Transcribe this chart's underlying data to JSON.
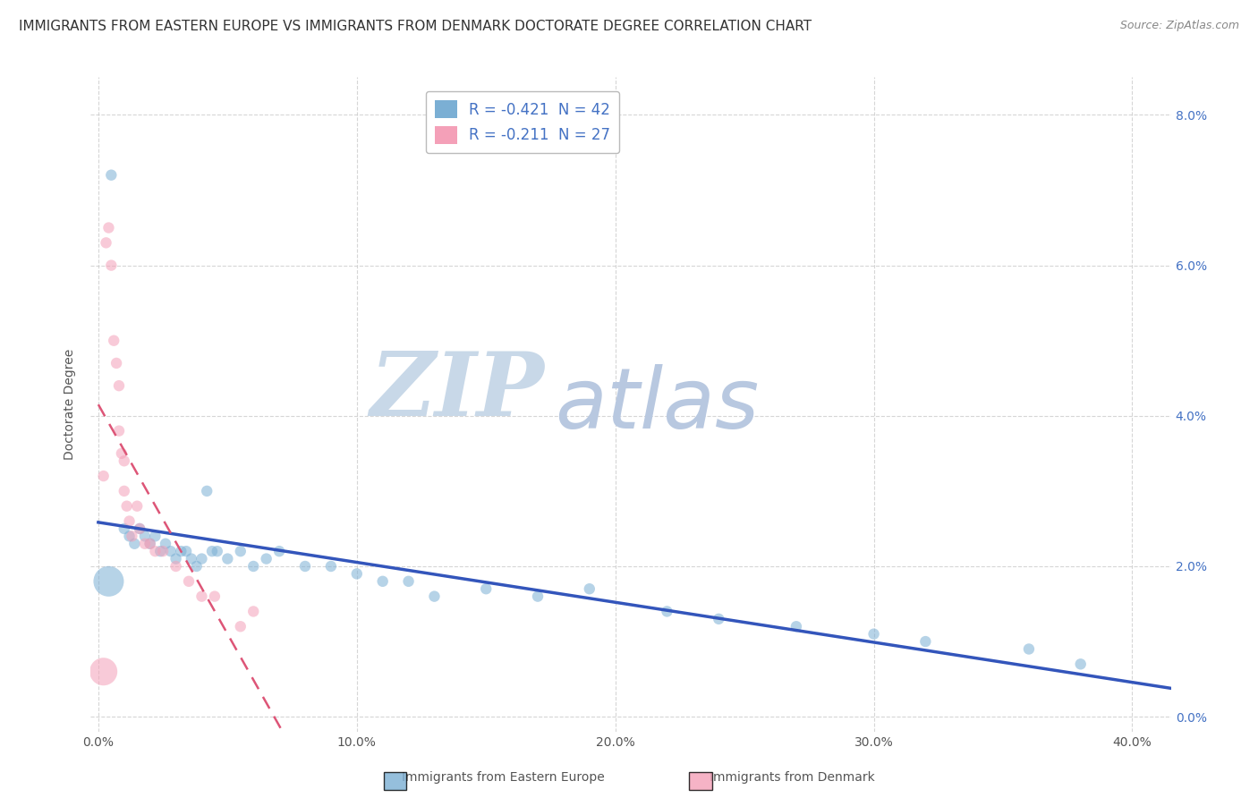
{
  "title": "IMMIGRANTS FROM EASTERN EUROPE VS IMMIGRANTS FROM DENMARK DOCTORATE DEGREE CORRELATION CHART",
  "source": "Source: ZipAtlas.com",
  "ylabel": "Doctorate Degree",
  "xlabel_ticks": [
    "0.0%",
    "10.0%",
    "20.0%",
    "30.0%",
    "40.0%"
  ],
  "ylabel_ticks": [
    "0.0%",
    "2.0%",
    "4.0%",
    "6.0%",
    "8.0%"
  ],
  "xlim": [
    -0.003,
    0.415
  ],
  "ylim": [
    -0.002,
    0.085
  ],
  "legend_entries": [
    {
      "label": "R = -0.421  N = 42",
      "color": "#aac4e0"
    },
    {
      "label": "R = -0.211  N = 27",
      "color": "#f4a0b8"
    }
  ],
  "legend_sub_labels": [
    "Immigrants from Eastern Europe",
    "Immigrants from Denmark"
  ],
  "blue_scatter": {
    "x": [
      0.005,
      0.01,
      0.012,
      0.014,
      0.016,
      0.018,
      0.02,
      0.022,
      0.024,
      0.026,
      0.028,
      0.03,
      0.032,
      0.034,
      0.036,
      0.038,
      0.04,
      0.042,
      0.044,
      0.046,
      0.05,
      0.055,
      0.06,
      0.065,
      0.07,
      0.08,
      0.09,
      0.1,
      0.11,
      0.12,
      0.13,
      0.15,
      0.17,
      0.19,
      0.22,
      0.24,
      0.27,
      0.3,
      0.32,
      0.36,
      0.38,
      0.004
    ],
    "y": [
      0.072,
      0.025,
      0.024,
      0.023,
      0.025,
      0.024,
      0.023,
      0.024,
      0.022,
      0.023,
      0.022,
      0.021,
      0.022,
      0.022,
      0.021,
      0.02,
      0.021,
      0.03,
      0.022,
      0.022,
      0.021,
      0.022,
      0.02,
      0.021,
      0.022,
      0.02,
      0.02,
      0.019,
      0.018,
      0.018,
      0.016,
      0.017,
      0.016,
      0.017,
      0.014,
      0.013,
      0.012,
      0.011,
      0.01,
      0.009,
      0.007,
      0.018
    ],
    "sizes": [
      80,
      80,
      80,
      80,
      80,
      80,
      80,
      80,
      80,
      80,
      80,
      80,
      80,
      80,
      80,
      80,
      80,
      80,
      80,
      80,
      80,
      80,
      80,
      80,
      80,
      80,
      80,
      80,
      80,
      80,
      80,
      80,
      80,
      80,
      80,
      80,
      80,
      80,
      80,
      80,
      80,
      600
    ]
  },
  "pink_scatter": {
    "x": [
      0.002,
      0.003,
      0.004,
      0.005,
      0.006,
      0.007,
      0.008,
      0.008,
      0.009,
      0.01,
      0.01,
      0.011,
      0.012,
      0.013,
      0.015,
      0.016,
      0.018,
      0.02,
      0.022,
      0.025,
      0.03,
      0.035,
      0.04,
      0.045,
      0.055,
      0.06,
      0.002
    ],
    "y": [
      0.032,
      0.063,
      0.065,
      0.06,
      0.05,
      0.047,
      0.044,
      0.038,
      0.035,
      0.034,
      0.03,
      0.028,
      0.026,
      0.024,
      0.028,
      0.025,
      0.023,
      0.023,
      0.022,
      0.022,
      0.02,
      0.018,
      0.016,
      0.016,
      0.012,
      0.014,
      0.006
    ],
    "sizes": [
      80,
      80,
      80,
      80,
      80,
      80,
      80,
      80,
      80,
      80,
      80,
      80,
      80,
      80,
      80,
      80,
      80,
      80,
      80,
      80,
      80,
      80,
      80,
      80,
      80,
      80,
      500
    ]
  },
  "blue_color": "#7bafd4",
  "pink_color": "#f4a0b8",
  "blue_line_color": "#3355bb",
  "pink_line_color": "#dd5577",
  "background_color": "#ffffff",
  "grid_color": "#cccccc",
  "title_fontsize": 11,
  "axis_label_fontsize": 10,
  "tick_fontsize": 10,
  "watermark_zip": "ZIP",
  "watermark_atlas": "atlas",
  "watermark_color_zip": "#c8d8e8",
  "watermark_color_atlas": "#b8c8e0"
}
